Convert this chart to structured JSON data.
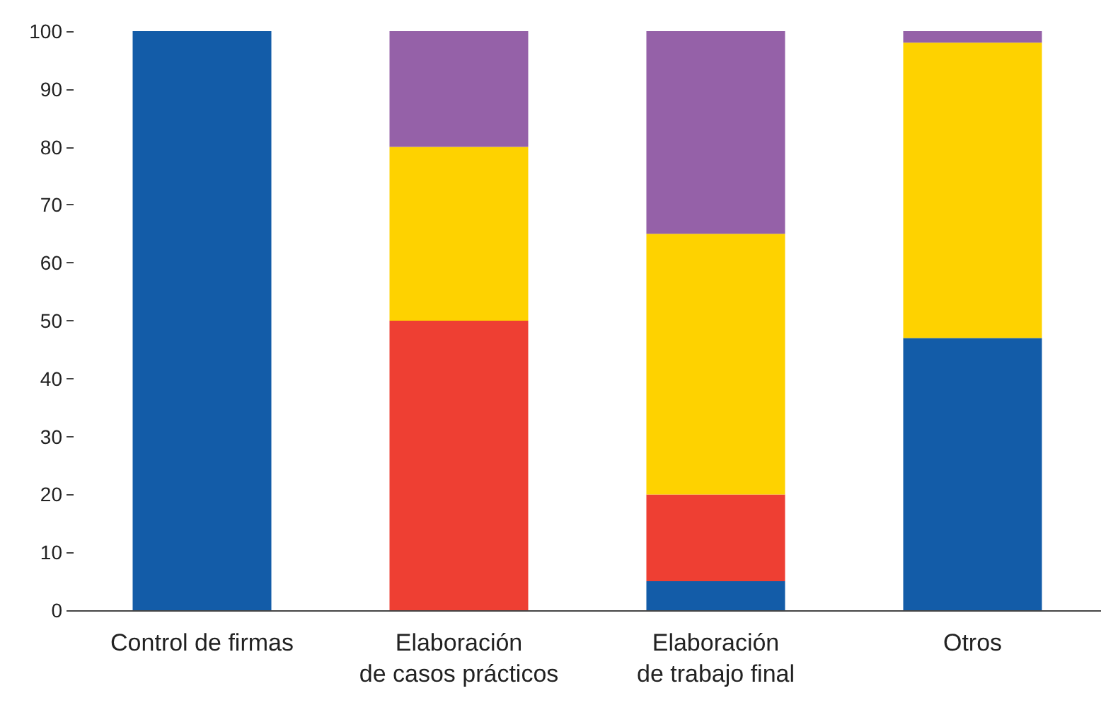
{
  "chart_data": {
    "type": "bar",
    "stacked": true,
    "categories": [
      "Control de firmas",
      "Elaboración\nde casos prácticos",
      "Elaboración\nde trabajo final",
      "Otros"
    ],
    "series": [
      {
        "color": "#135ca8",
        "values": [
          100,
          0,
          5,
          47
        ]
      },
      {
        "color": "#ee3f33",
        "values": [
          0,
          50,
          15,
          0
        ]
      },
      {
        "color": "#fed200",
        "values": [
          0,
          30,
          45,
          51
        ]
      },
      {
        "color": "#9561a8",
        "values": [
          0,
          20,
          35,
          2
        ]
      }
    ],
    "ylim": [
      0,
      100
    ],
    "yticks": [
      0,
      10,
      20,
      30,
      40,
      50,
      60,
      70,
      80,
      90,
      100
    ],
    "grid": false,
    "legend": false
  }
}
